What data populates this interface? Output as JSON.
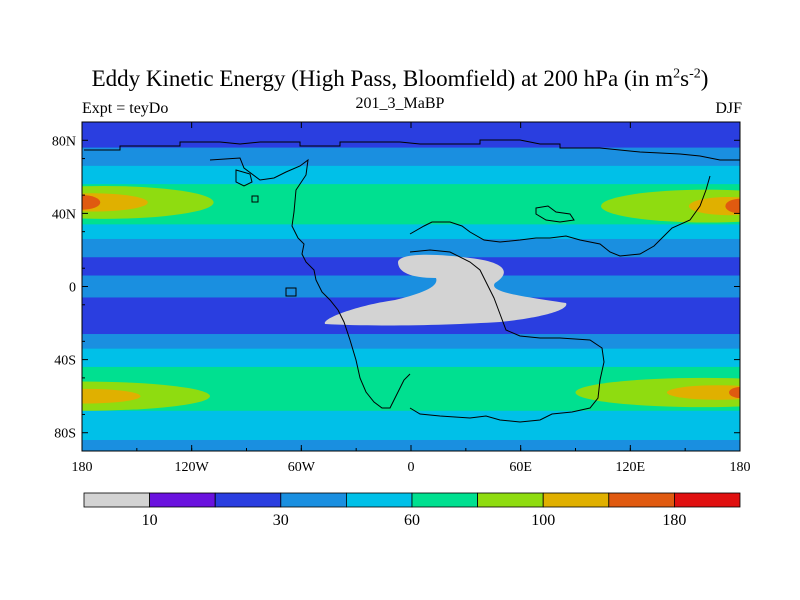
{
  "title": {
    "main": "Eddy Kinetic Energy (High Pass, Bloomfield) at 200 hPa (in m",
    "sup1": "2",
    "mid": "s",
    "sup2": "-2",
    "end": ")"
  },
  "subtitle_left": "Expt = teyDo",
  "subtitle_center": "201_3_MaBP",
  "subtitle_right": "DJF",
  "colors": {
    "levels": [
      "#d3d3d3",
      "#6a12de",
      "#2a3ee0",
      "#1a8fe0",
      "#00c0e8",
      "#00e090",
      "#8fdc10",
      "#e0b000",
      "#e05a10",
      "#e01010"
    ],
    "coast": "#000000"
  },
  "chart_data": {
    "type": "heatmap",
    "x_ticks": [
      "180",
      "120W",
      "60W",
      "0",
      "60E",
      "120E",
      "180"
    ],
    "x_values": [
      -180,
      -120,
      -60,
      0,
      60,
      120,
      180
    ],
    "y_ticks": [
      "80N",
      "40N",
      "0",
      "40S",
      "80S"
    ],
    "y_values": [
      80,
      40,
      0,
      -40,
      -80
    ],
    "xlim": [
      -180,
      180
    ],
    "ylim": [
      -90,
      90
    ],
    "colorbar_labels": [
      "10",
      "30",
      "60",
      "100",
      "180"
    ],
    "colorbar_label_positions": [
      1,
      3,
      5,
      7,
      9
    ],
    "zonal_bands": [
      {
        "lat_max": 90,
        "lat_min": 84,
        "level": 2
      },
      {
        "lat_max": 84,
        "lat_min": 76,
        "level": 2
      },
      {
        "lat_max": 76,
        "lat_min": 66,
        "level": 3
      },
      {
        "lat_max": 66,
        "lat_min": 56,
        "level": 4
      },
      {
        "lat_max": 56,
        "lat_min": 46,
        "level": 5
      },
      {
        "lat_max": 46,
        "lat_min": 34,
        "level": 5
      },
      {
        "lat_max": 34,
        "lat_min": 26,
        "level": 4
      },
      {
        "lat_max": 26,
        "lat_min": 16,
        "level": 3
      },
      {
        "lat_max": 16,
        "lat_min": 6,
        "level": 2
      },
      {
        "lat_max": 6,
        "lat_min": -6,
        "level": 3
      },
      {
        "lat_max": -6,
        "lat_min": -16,
        "level": 2
      },
      {
        "lat_max": -16,
        "lat_min": -26,
        "level": 2
      },
      {
        "lat_max": -26,
        "lat_min": -34,
        "level": 3
      },
      {
        "lat_max": -34,
        "lat_min": -44,
        "level": 4
      },
      {
        "lat_max": -44,
        "lat_min": -52,
        "level": 5
      },
      {
        "lat_max": -52,
        "lat_min": -68,
        "level": 5
      },
      {
        "lat_max": -68,
        "lat_min": -76,
        "level": 4
      },
      {
        "lat_max": -76,
        "lat_min": -84,
        "level": 4
      },
      {
        "lat_max": -84,
        "lat_min": -90,
        "level": 3
      }
    ],
    "jets": [
      {
        "lon": -168,
        "lat": 46,
        "lon_radius": 60,
        "lat_radius": 9,
        "level": 6
      },
      {
        "lon": -174,
        "lat": 46,
        "lon_radius": 30,
        "lat_radius": 5,
        "level": 7
      },
      {
        "lon": -180,
        "lat": 46,
        "lon_radius": 10,
        "lat_radius": 4,
        "level": 8
      },
      {
        "lon": 162,
        "lat": 44,
        "lon_radius": 58,
        "lat_radius": 9,
        "level": 6
      },
      {
        "lon": 174,
        "lat": 44,
        "lon_radius": 22,
        "lat_radius": 5,
        "level": 7
      },
      {
        "lon": 180,
        "lat": 44,
        "lon_radius": 8,
        "lat_radius": 4,
        "level": 8
      },
      {
        "lon": -180,
        "lat": -60,
        "lon_radius": 70,
        "lat_radius": 8,
        "level": 6
      },
      {
        "lon": -178,
        "lat": -60,
        "lon_radius": 30,
        "lat_radius": 4,
        "level": 7
      },
      {
        "lon": 160,
        "lat": -58,
        "lon_radius": 70,
        "lat_radius": 8,
        "level": 6
      },
      {
        "lon": 168,
        "lat": -58,
        "lon_radius": 28,
        "lat_radius": 4,
        "level": 7
      },
      {
        "lon": 180,
        "lat": -58,
        "lon_radius": 6,
        "lat_radius": 3,
        "level": 8
      }
    ]
  }
}
